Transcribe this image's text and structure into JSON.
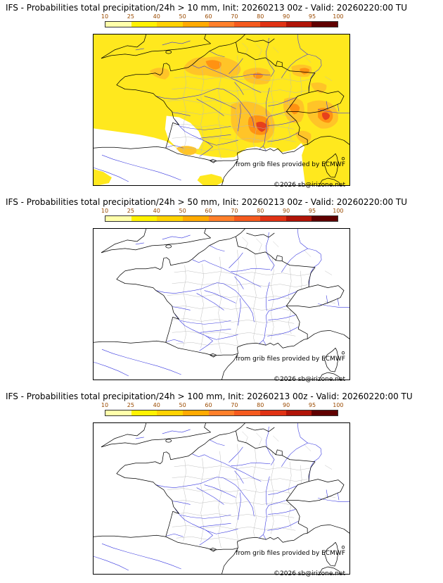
{
  "panels": [
    {
      "id": "10mm",
      "title": "IFS - Probabilities total precipitation/24h > 10 mm, Init: 20260213 00z - Valid: 20260220:00 TU"
    },
    {
      "id": "50mm",
      "title": "IFS - Probabilities total precipitation/24h > 50 mm, Init: 20260213 00z - Valid: 20260220:00 TU"
    },
    {
      "id": "100mm",
      "title": "IFS - Probabilities total precipitation/24h > 100 mm, Init: 20260213 00z - Valid: 20260220:00 TU"
    }
  ],
  "colorbar": {
    "ticks": [
      "10",
      "25",
      "40",
      "50",
      "60",
      "70",
      "80",
      "90",
      "95",
      "100"
    ],
    "colors": [
      "#ffffaa",
      "#fff200",
      "#ffd200",
      "#ffaa00",
      "#ff7f2a",
      "#f55a1e",
      "#e03214",
      "#b01408",
      "#600000"
    ]
  },
  "attribution": {
    "provider": "from grib files provided by ECMWF",
    "copyright": "©2026 sb@irizone.net"
  },
  "map_colors": {
    "sea_land": "#ffffff",
    "coast_border": "#000000",
    "rivers": "#3a3ae0",
    "departments": "#b8b8b8",
    "precip_10_25": "#ffe81e",
    "precip_40": "#ffc428",
    "precip_60": "#ff9212",
    "precip_80": "#e6401c"
  }
}
